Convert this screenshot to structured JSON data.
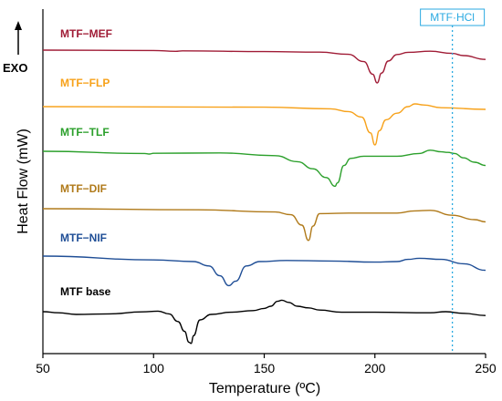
{
  "chart_data": {
    "type": "line",
    "title": "",
    "xlabel": "Temperature (ºC)",
    "ylabel": "Heat Flow (mW)",
    "xlim": [
      50,
      250
    ],
    "xticks": [
      50,
      100,
      150,
      200,
      250
    ],
    "y_ticks_shown": false,
    "grid": false,
    "exo_label": "EXO",
    "exo_direction": "up",
    "reference_line": {
      "label": "MTF·HCl",
      "x": 235,
      "color": "#29a9e1",
      "style": "dotted"
    },
    "series": [
      {
        "name": "MTF−MEF",
        "color": "#a01c36",
        "points": [
          [
            50,
            0.0
          ],
          [
            100,
            -0.03
          ],
          [
            110,
            -0.11
          ],
          [
            113,
            -0.07
          ],
          [
            150,
            -0.13
          ],
          [
            175,
            -0.18
          ],
          [
            188,
            -0.38
          ],
          [
            195,
            -1.05
          ],
          [
            199,
            -2.2
          ],
          [
            201,
            -3.0
          ],
          [
            203,
            -2.1
          ],
          [
            206,
            -1.0
          ],
          [
            210,
            -0.4
          ],
          [
            215,
            -0.2
          ],
          [
            225,
            -0.1
          ],
          [
            235,
            -0.3
          ],
          [
            240,
            -0.5
          ],
          [
            250,
            -0.85
          ]
        ]
      },
      {
        "name": "MTF−FLP",
        "color": "#f7a21b",
        "points": [
          [
            50,
            0.0
          ],
          [
            150,
            -0.05
          ],
          [
            180,
            -0.2
          ],
          [
            188,
            -0.45
          ],
          [
            194,
            -0.95
          ],
          [
            198,
            -2.4
          ],
          [
            200,
            -3.5
          ],
          [
            202,
            -2.2
          ],
          [
            205,
            -1.2
          ],
          [
            210,
            -0.6
          ],
          [
            215,
            0.0
          ],
          [
            218,
            0.25
          ],
          [
            222,
            0.15
          ],
          [
            230,
            -0.1
          ],
          [
            250,
            -0.25
          ]
        ]
      },
      {
        "name": "MTF−TLF",
        "color": "#2ca02c",
        "points": [
          [
            50,
            0.0
          ],
          [
            96,
            -0.2
          ],
          [
            98,
            -0.25
          ],
          [
            100,
            -0.18
          ],
          [
            130,
            -0.15
          ],
          [
            155,
            -0.4
          ],
          [
            165,
            -0.95
          ],
          [
            172,
            -1.6
          ],
          [
            178,
            -2.4
          ],
          [
            182,
            -3.2
          ],
          [
            183,
            -2.9
          ],
          [
            186,
            -1.3
          ],
          [
            189,
            -0.65
          ],
          [
            195,
            -0.45
          ],
          [
            210,
            -0.45
          ],
          [
            220,
            -0.2
          ],
          [
            225,
            0.1
          ],
          [
            230,
            -0.05
          ],
          [
            233,
            -0.1
          ],
          [
            236,
            -0.2
          ],
          [
            240,
            -0.6
          ],
          [
            245,
            -1.0
          ],
          [
            250,
            -1.3
          ]
        ]
      },
      {
        "name": "MTF−DIF",
        "color": "#b07a1a",
        "points": [
          [
            50,
            0.0
          ],
          [
            120,
            -0.1
          ],
          [
            155,
            -0.3
          ],
          [
            162,
            -0.55
          ],
          [
            167,
            -1.5
          ],
          [
            170,
            -2.9
          ],
          [
            172,
            -1.6
          ],
          [
            175,
            -0.45
          ],
          [
            190,
            -0.4
          ],
          [
            210,
            -0.4
          ],
          [
            218,
            -0.2
          ],
          [
            225,
            -0.15
          ],
          [
            235,
            -0.6
          ],
          [
            245,
            -1.0
          ],
          [
            250,
            -1.2
          ]
        ]
      },
      {
        "name": "MTF−NIF",
        "color": "#1f4e96",
        "points": [
          [
            50,
            0.0
          ],
          [
            100,
            -0.35
          ],
          [
            118,
            -0.5
          ],
          [
            125,
            -0.9
          ],
          [
            130,
            -1.8
          ],
          [
            134,
            -2.7
          ],
          [
            137,
            -2.3
          ],
          [
            142,
            -0.9
          ],
          [
            148,
            -0.5
          ],
          [
            160,
            -0.4
          ],
          [
            180,
            -0.45
          ],
          [
            200,
            -0.55
          ],
          [
            210,
            -0.5
          ],
          [
            215,
            -0.3
          ],
          [
            220,
            -0.2
          ],
          [
            230,
            -0.3
          ],
          [
            240,
            -0.7
          ],
          [
            250,
            -1.3
          ]
        ]
      },
      {
        "name": "MTF base",
        "color": "#000000",
        "points": [
          [
            50,
            0.0
          ],
          [
            57,
            -0.1
          ],
          [
            65,
            -0.25
          ],
          [
            80,
            -0.2
          ],
          [
            95,
            -0.02
          ],
          [
            102,
            0.05
          ],
          [
            107,
            -0.2
          ],
          [
            111,
            -0.9
          ],
          [
            114,
            -1.8
          ],
          [
            116,
            -2.8
          ],
          [
            117,
            -2.9
          ],
          [
            118,
            -2.2
          ],
          [
            121,
            -0.75
          ],
          [
            126,
            -0.25
          ],
          [
            135,
            -0.05
          ],
          [
            145,
            0.1
          ],
          [
            150,
            0.3
          ],
          [
            153,
            0.5
          ],
          [
            156,
            0.95
          ],
          [
            158,
            1.05
          ],
          [
            161,
            0.85
          ],
          [
            165,
            0.5
          ],
          [
            170,
            0.35
          ],
          [
            175,
            0.15
          ],
          [
            185,
            -0.05
          ],
          [
            200,
            -0.05
          ],
          [
            225,
            -0.1
          ],
          [
            232,
            0.0
          ],
          [
            240,
            -0.15
          ],
          [
            250,
            -0.35
          ]
        ]
      }
    ]
  }
}
